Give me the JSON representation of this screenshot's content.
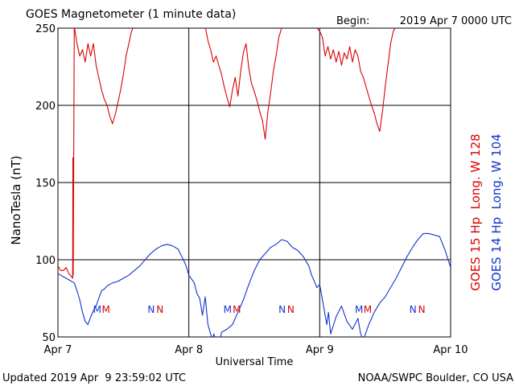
{
  "header": {
    "title": "GOES Magnetometer (1 minute data)",
    "begin_label": "Begin:",
    "begin_value": "2019 Apr 7 0000 UTC"
  },
  "footer": {
    "updated": "Updated 2019 Apr  9 23:59:02 UTC",
    "credit": "NOAA/SWPC Boulder, CO USA"
  },
  "colors": {
    "goes15": "#dd0000",
    "goes14": "#1133cc",
    "grid": "#000000"
  },
  "chart_data": {
    "type": "line",
    "title": "GOES Magnetometer (1 minute data)",
    "xlabel": "Universal Time",
    "ylabel": "NanoTesla (nT)",
    "ylim": [
      50,
      250
    ],
    "yticks": [
      50,
      100,
      150,
      200,
      250
    ],
    "xlim": [
      0,
      72
    ],
    "xticks": [
      {
        "x": 0,
        "label": "Apr 7"
      },
      {
        "x": 24,
        "label": "Apr 8"
      },
      {
        "x": 48,
        "label": "Apr 9"
      },
      {
        "x": 72,
        "label": "Apr 10"
      }
    ],
    "grid": true,
    "legend": [
      {
        "name": "GOES 15 Hp  Long. W 128",
        "color": "#dd0000"
      },
      {
        "name": "GOES 14 Hp  Long. W 104",
        "color": "#1133cc"
      }
    ],
    "series": [
      {
        "name": "GOES 15 Hp  Long. W 128",
        "color": "#dd0000",
        "points": [
          [
            0,
            96
          ],
          [
            0.5,
            93
          ],
          [
            1,
            93
          ],
          [
            1.5,
            95
          ],
          [
            2,
            91
          ],
          [
            2.5,
            89
          ],
          [
            2.7,
            88
          ],
          [
            2.75,
            166
          ],
          [
            2.8,
            90
          ],
          [
            3,
            251
          ],
          [
            3.5,
            240
          ],
          [
            4,
            232
          ],
          [
            4.5,
            236
          ],
          [
            5,
            228
          ],
          [
            5.5,
            240
          ],
          [
            6,
            232
          ],
          [
            6.5,
            240
          ],
          [
            7,
            226
          ],
          [
            7.5,
            218
          ],
          [
            8,
            210
          ],
          [
            8.5,
            204
          ],
          [
            9,
            200
          ],
          [
            9.5,
            193
          ],
          [
            10,
            188
          ],
          [
            10.5,
            194
          ],
          [
            11,
            202
          ],
          [
            11.5,
            210
          ],
          [
            12,
            220
          ],
          [
            12.5,
            232
          ],
          [
            13,
            240
          ],
          [
            13.5,
            248
          ],
          [
            14,
            252
          ],
          [
            20,
            252
          ],
          [
            27,
            251
          ],
          [
            27.5,
            242
          ],
          [
            28,
            236
          ],
          [
            28.5,
            228
          ],
          [
            29,
            232
          ],
          [
            29.5,
            226
          ],
          [
            30,
            220
          ],
          [
            30.5,
            212
          ],
          [
            31,
            205
          ],
          [
            31.5,
            199
          ],
          [
            32,
            210
          ],
          [
            32.5,
            218
          ],
          [
            33,
            206
          ],
          [
            33.5,
            222
          ],
          [
            34,
            234
          ],
          [
            34.5,
            240
          ],
          [
            35,
            224
          ],
          [
            35.5,
            214
          ],
          [
            36,
            209
          ],
          [
            36.5,
            203
          ],
          [
            37,
            196
          ],
          [
            37.5,
            190
          ],
          [
            38,
            178
          ],
          [
            38.5,
            196
          ],
          [
            39,
            208
          ],
          [
            39.5,
            222
          ],
          [
            40,
            232
          ],
          [
            40.5,
            244
          ],
          [
            41,
            250
          ],
          [
            42,
            252
          ],
          [
            47,
            252
          ],
          [
            48,
            248
          ],
          [
            48.5,
            244
          ],
          [
            49,
            232
          ],
          [
            49.5,
            238
          ],
          [
            50,
            230
          ],
          [
            50.5,
            236
          ],
          [
            51,
            228
          ],
          [
            51.5,
            235
          ],
          [
            52,
            226
          ],
          [
            52.5,
            234
          ],
          [
            53,
            230
          ],
          [
            53.5,
            238
          ],
          [
            54,
            228
          ],
          [
            54.5,
            236
          ],
          [
            55,
            232
          ],
          [
            55.5,
            222
          ],
          [
            56,
            218
          ],
          [
            56.5,
            212
          ],
          [
            57,
            206
          ],
          [
            57.5,
            200
          ],
          [
            58,
            195
          ],
          [
            58.5,
            188
          ],
          [
            59,
            183
          ],
          [
            59.5,
            196
          ],
          [
            60,
            212
          ],
          [
            60.5,
            226
          ],
          [
            61,
            240
          ],
          [
            61.5,
            248
          ],
          [
            62,
            251
          ]
        ]
      },
      {
        "name": "GOES 14 Hp  Long. W 104",
        "color": "#1133cc",
        "points": [
          [
            0,
            91
          ],
          [
            1,
            89
          ],
          [
            2,
            87
          ],
          [
            3,
            85
          ],
          [
            3.5,
            80
          ],
          [
            4,
            74
          ],
          [
            4.5,
            66
          ],
          [
            5,
            60
          ],
          [
            5.5,
            58
          ],
          [
            6,
            63
          ],
          [
            6.5,
            67
          ],
          [
            7,
            70
          ],
          [
            7.5,
            75
          ],
          [
            8,
            80
          ],
          [
            8.5,
            81
          ],
          [
            9,
            83
          ],
          [
            10,
            85
          ],
          [
            11,
            86
          ],
          [
            12,
            88
          ],
          [
            13,
            90
          ],
          [
            14,
            93
          ],
          [
            15,
            96
          ],
          [
            16,
            100
          ],
          [
            17,
            104
          ],
          [
            18,
            107
          ],
          [
            19,
            109
          ],
          [
            20,
            110
          ],
          [
            21,
            109
          ],
          [
            22,
            107
          ],
          [
            23,
            100
          ],
          [
            23.5,
            96
          ],
          [
            24,
            90
          ],
          [
            25,
            85
          ],
          [
            25.5,
            78
          ],
          [
            26,
            75
          ],
          [
            26.5,
            64
          ],
          [
            27,
            76
          ],
          [
            27.5,
            58
          ],
          [
            28,
            52
          ],
          [
            28.3,
            48
          ],
          [
            28.6,
            52
          ],
          [
            29,
            46
          ],
          [
            29.5,
            44
          ],
          [
            30,
            53
          ],
          [
            31,
            55
          ],
          [
            32,
            58
          ],
          [
            33,
            66
          ],
          [
            34,
            74
          ],
          [
            35,
            84
          ],
          [
            36,
            93
          ],
          [
            37,
            100
          ],
          [
            38,
            104
          ],
          [
            39,
            108
          ],
          [
            40,
            110
          ],
          [
            41,
            113
          ],
          [
            42,
            112
          ],
          [
            43,
            108
          ],
          [
            44,
            106
          ],
          [
            45,
            102
          ],
          [
            46,
            96
          ],
          [
            46.5,
            90
          ],
          [
            47,
            86
          ],
          [
            47.5,
            82
          ],
          [
            48,
            84
          ],
          [
            48.5,
            74
          ],
          [
            49,
            64
          ],
          [
            49.3,
            58
          ],
          [
            49.6,
            66
          ],
          [
            50,
            52
          ],
          [
            51,
            63
          ],
          [
            52,
            70
          ],
          [
            53,
            60
          ],
          [
            54,
            55
          ],
          [
            55,
            62
          ],
          [
            55.5,
            52
          ],
          [
            56,
            48
          ],
          [
            57,
            58
          ],
          [
            58,
            66
          ],
          [
            59,
            72
          ],
          [
            60,
            76
          ],
          [
            61,
            82
          ],
          [
            62,
            88
          ],
          [
            63,
            95
          ],
          [
            64,
            102
          ],
          [
            65,
            108
          ],
          [
            66,
            113
          ],
          [
            67,
            117
          ],
          [
            68,
            117
          ],
          [
            69,
            116
          ],
          [
            70,
            115
          ],
          [
            71,
            106
          ],
          [
            72,
            95
          ]
        ]
      }
    ],
    "annotations": [
      {
        "text": "M",
        "x": 7.2,
        "color": "#1133cc"
      },
      {
        "text": "M",
        "x": 8.8,
        "color": "#dd0000"
      },
      {
        "text": "N",
        "x": 17.1,
        "color": "#1133cc"
      },
      {
        "text": "N",
        "x": 18.7,
        "color": "#dd0000"
      },
      {
        "text": "M",
        "x": 31.1,
        "color": "#1133cc"
      },
      {
        "text": "M",
        "x": 32.8,
        "color": "#dd0000"
      },
      {
        "text": "N",
        "x": 41.1,
        "color": "#1133cc"
      },
      {
        "text": "N",
        "x": 42.7,
        "color": "#dd0000"
      },
      {
        "text": "M",
        "x": 55.2,
        "color": "#1133cc"
      },
      {
        "text": "M",
        "x": 56.8,
        "color": "#dd0000"
      },
      {
        "text": "N",
        "x": 65.1,
        "color": "#1133cc"
      },
      {
        "text": "N",
        "x": 66.7,
        "color": "#dd0000"
      }
    ]
  }
}
